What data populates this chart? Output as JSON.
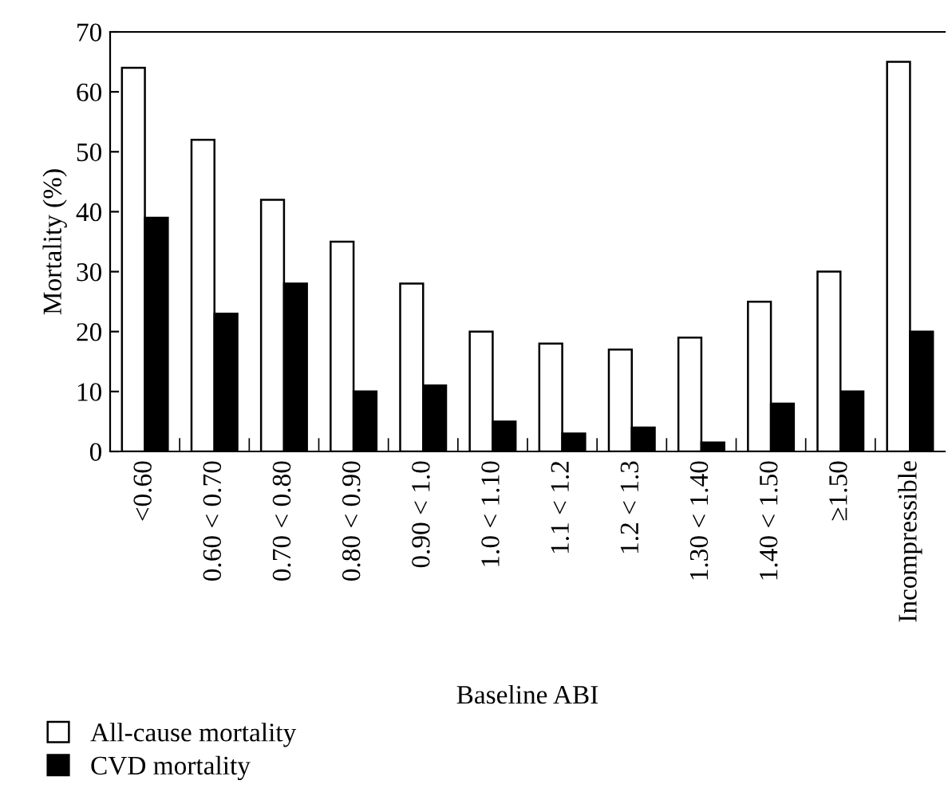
{
  "chart_data": {
    "type": "bar",
    "xlabel": "Baseline ABI",
    "ylabel": "Mortality (%)",
    "categories": [
      "<0.60",
      "0.60 < 0.70",
      "0.70 < 0.80",
      "0.80 < 0.90",
      "0.90 < 1.0",
      "1.0 < 1.10",
      "1.1 < 1.2",
      "1.2 < 1.3",
      "1.30 < 1.40",
      "1.40 < 1.50",
      "≥1.50",
      "Incompressible"
    ],
    "series": [
      {
        "name": "All-cause mortality",
        "color": "#ffffff",
        "values": [
          64,
          52,
          42,
          35,
          28,
          20,
          18,
          17,
          19,
          25,
          30,
          65
        ]
      },
      {
        "name": "CVD mortality",
        "color": "#000000",
        "values": [
          39,
          23,
          28,
          10,
          11,
          5,
          3,
          4,
          1.5,
          8,
          10,
          20
        ]
      }
    ],
    "ylim": [
      0,
      70
    ],
    "yticks": [
      0,
      10,
      20,
      30,
      40,
      50,
      60,
      70
    ],
    "grid": false,
    "legend": "bottom left"
  }
}
